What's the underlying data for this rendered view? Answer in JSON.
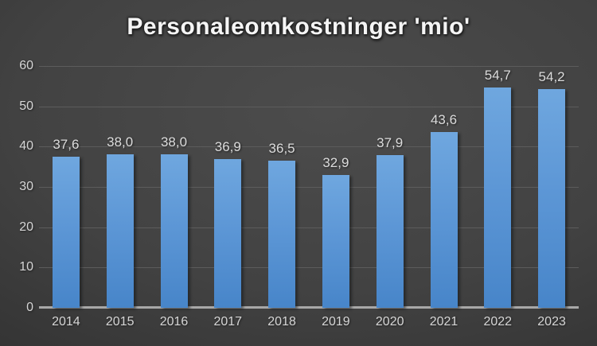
{
  "chart_data": {
    "type": "bar",
    "title": "Personaleomkostninger 'mio'",
    "categories": [
      "2014",
      "2015",
      "2016",
      "2017",
      "2018",
      "2019",
      "2020",
      "2021",
      "2022",
      "2023"
    ],
    "values": [
      37.6,
      38.0,
      38.0,
      36.9,
      36.5,
      32.9,
      37.9,
      43.6,
      54.7,
      54.2
    ],
    "value_labels": [
      "37,6",
      "38,0",
      "38,0",
      "36,9",
      "36,5",
      "32,9",
      "37,9",
      "43,6",
      "54,7",
      "54,2"
    ],
    "xlabel": "",
    "ylabel": "",
    "ylim": [
      0,
      60
    ],
    "ytick_interval": 10,
    "ytick_labels": [
      "0",
      "10",
      "20",
      "30",
      "40",
      "50",
      "60"
    ],
    "grid": true,
    "legend": false,
    "colors": {
      "bar_top": "#6fa7df",
      "bar_bottom": "#4785c9",
      "background_center": "#4c4c4c",
      "background_edge": "#232323",
      "gridline": "#5c5c5c",
      "axis_line": "#a8a8a8",
      "text": "#d6d6d6",
      "title_text": "#f5f5f5"
    }
  }
}
